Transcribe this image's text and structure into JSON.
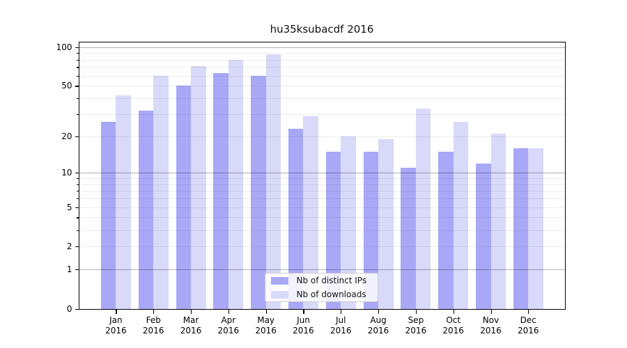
{
  "chart_data": {
    "type": "bar",
    "title": "hu35ksubacdf 2016",
    "categories": [
      {
        "month": "Jan",
        "year": "2016"
      },
      {
        "month": "Feb",
        "year": "2016"
      },
      {
        "month": "Mar",
        "year": "2016"
      },
      {
        "month": "Apr",
        "year": "2016"
      },
      {
        "month": "May",
        "year": "2016"
      },
      {
        "month": "Jun",
        "year": "2016"
      },
      {
        "month": "Jul",
        "year": "2016"
      },
      {
        "month": "Aug",
        "year": "2016"
      },
      {
        "month": "Sep",
        "year": "2016"
      },
      {
        "month": "Oct",
        "year": "2016"
      },
      {
        "month": "Nov",
        "year": "2016"
      },
      {
        "month": "Dec",
        "year": "2016"
      }
    ],
    "series": [
      {
        "name": "Nb of distinct IPs",
        "color": "#a8a8f7",
        "values": [
          26,
          32,
          50,
          63,
          60,
          23,
          15,
          15,
          11,
          15,
          12,
          16
        ]
      },
      {
        "name": "Nb of downloads",
        "color": "#d9d9fa",
        "values": [
          42,
          60,
          71,
          80,
          88,
          29,
          20,
          19,
          33,
          26,
          21,
          16
        ]
      }
    ],
    "yscale": "log1p",
    "yticks": [
      0,
      1,
      2,
      5,
      10,
      20,
      50,
      100
    ],
    "ylim": [
      0,
      109
    ],
    "xlabel": "",
    "ylabel": "",
    "grid": true,
    "legend_position": "bottom-center-inside"
  },
  "colors": {
    "bar_dark": "#a8a8f7",
    "bar_light": "#d9d9fa",
    "grid_major": "#b0b0b0",
    "grid_minor": "#ececec",
    "background": "#ffffff"
  }
}
